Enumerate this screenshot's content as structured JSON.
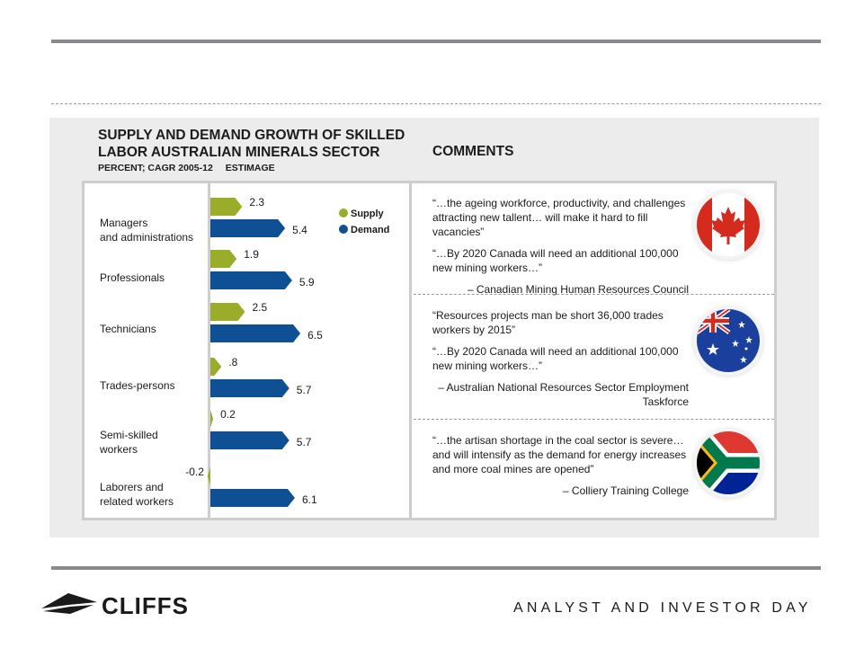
{
  "chart_data": {
    "type": "bar",
    "orientation": "horizontal",
    "title": "SUPPLY AND DEMAND GROWTH OF SKILLED LABOR AUSTRALIAN MINERALS SECTOR",
    "subtitle": "PERCENT; CAGR 2005-12",
    "subtitle_note": "ESTIMAGE",
    "categories": [
      [
        "Managers",
        "and administrations"
      ],
      [
        "Professionals"
      ],
      [
        "Technicians"
      ],
      [
        "Trades-persons"
      ],
      [
        "Semi-skilled",
        "workers"
      ],
      [
        "Laborers and",
        "related workers"
      ]
    ],
    "series": [
      {
        "name": "Supply",
        "color": "#9bac2a",
        "values": [
          2.3,
          1.9,
          2.5,
          0.8,
          0.2,
          -0.2
        ],
        "labels": [
          "2.3",
          "1.9",
          "2.5",
          ".8",
          "0.2",
          "-0.2"
        ]
      },
      {
        "name": "Demand",
        "color": "#0f4f93",
        "values": [
          5.4,
          5.9,
          6.5,
          5.7,
          5.7,
          6.1
        ],
        "labels": [
          "5.4",
          "5.9",
          "6.5",
          "5.7",
          "5.7",
          "6.1"
        ]
      }
    ],
    "legend_position": "top-right",
    "grid": false
  },
  "comments": {
    "title": "COMMENTS",
    "items": [
      {
        "flag": "canada-flag-icon",
        "quotes": [
          "“…the ageing workforce, productivity, and challenges attracting new tallent… will make it hard to fill vacancies”",
          "“…By 2020 Canada will need an additional 100,000 new mining workers…”"
        ],
        "source": "– Canadian Mining Human Resources Council"
      },
      {
        "flag": "australia-flag-icon",
        "quotes": [
          "“Resources projects man be short 36,000 trades workers by 2015”",
          "“…By 2020 Canada will need an additional 100,000 new mining workers…”"
        ],
        "source": "– Australian National Resources Sector Employment Taskforce"
      },
      {
        "flag": "south-africa-flag-icon",
        "quotes": [
          "“…the artisan shortage in the coal sector is severe… and will intensify as the demand for energy increases and more coal mines are opened”"
        ],
        "source": "– Colliery Training College"
      }
    ]
  },
  "footer": {
    "logo_text": "CLIFFS",
    "logo_icon": "cliffs-logo-icon",
    "event": "ANALYST AND INVESTOR DAY"
  }
}
